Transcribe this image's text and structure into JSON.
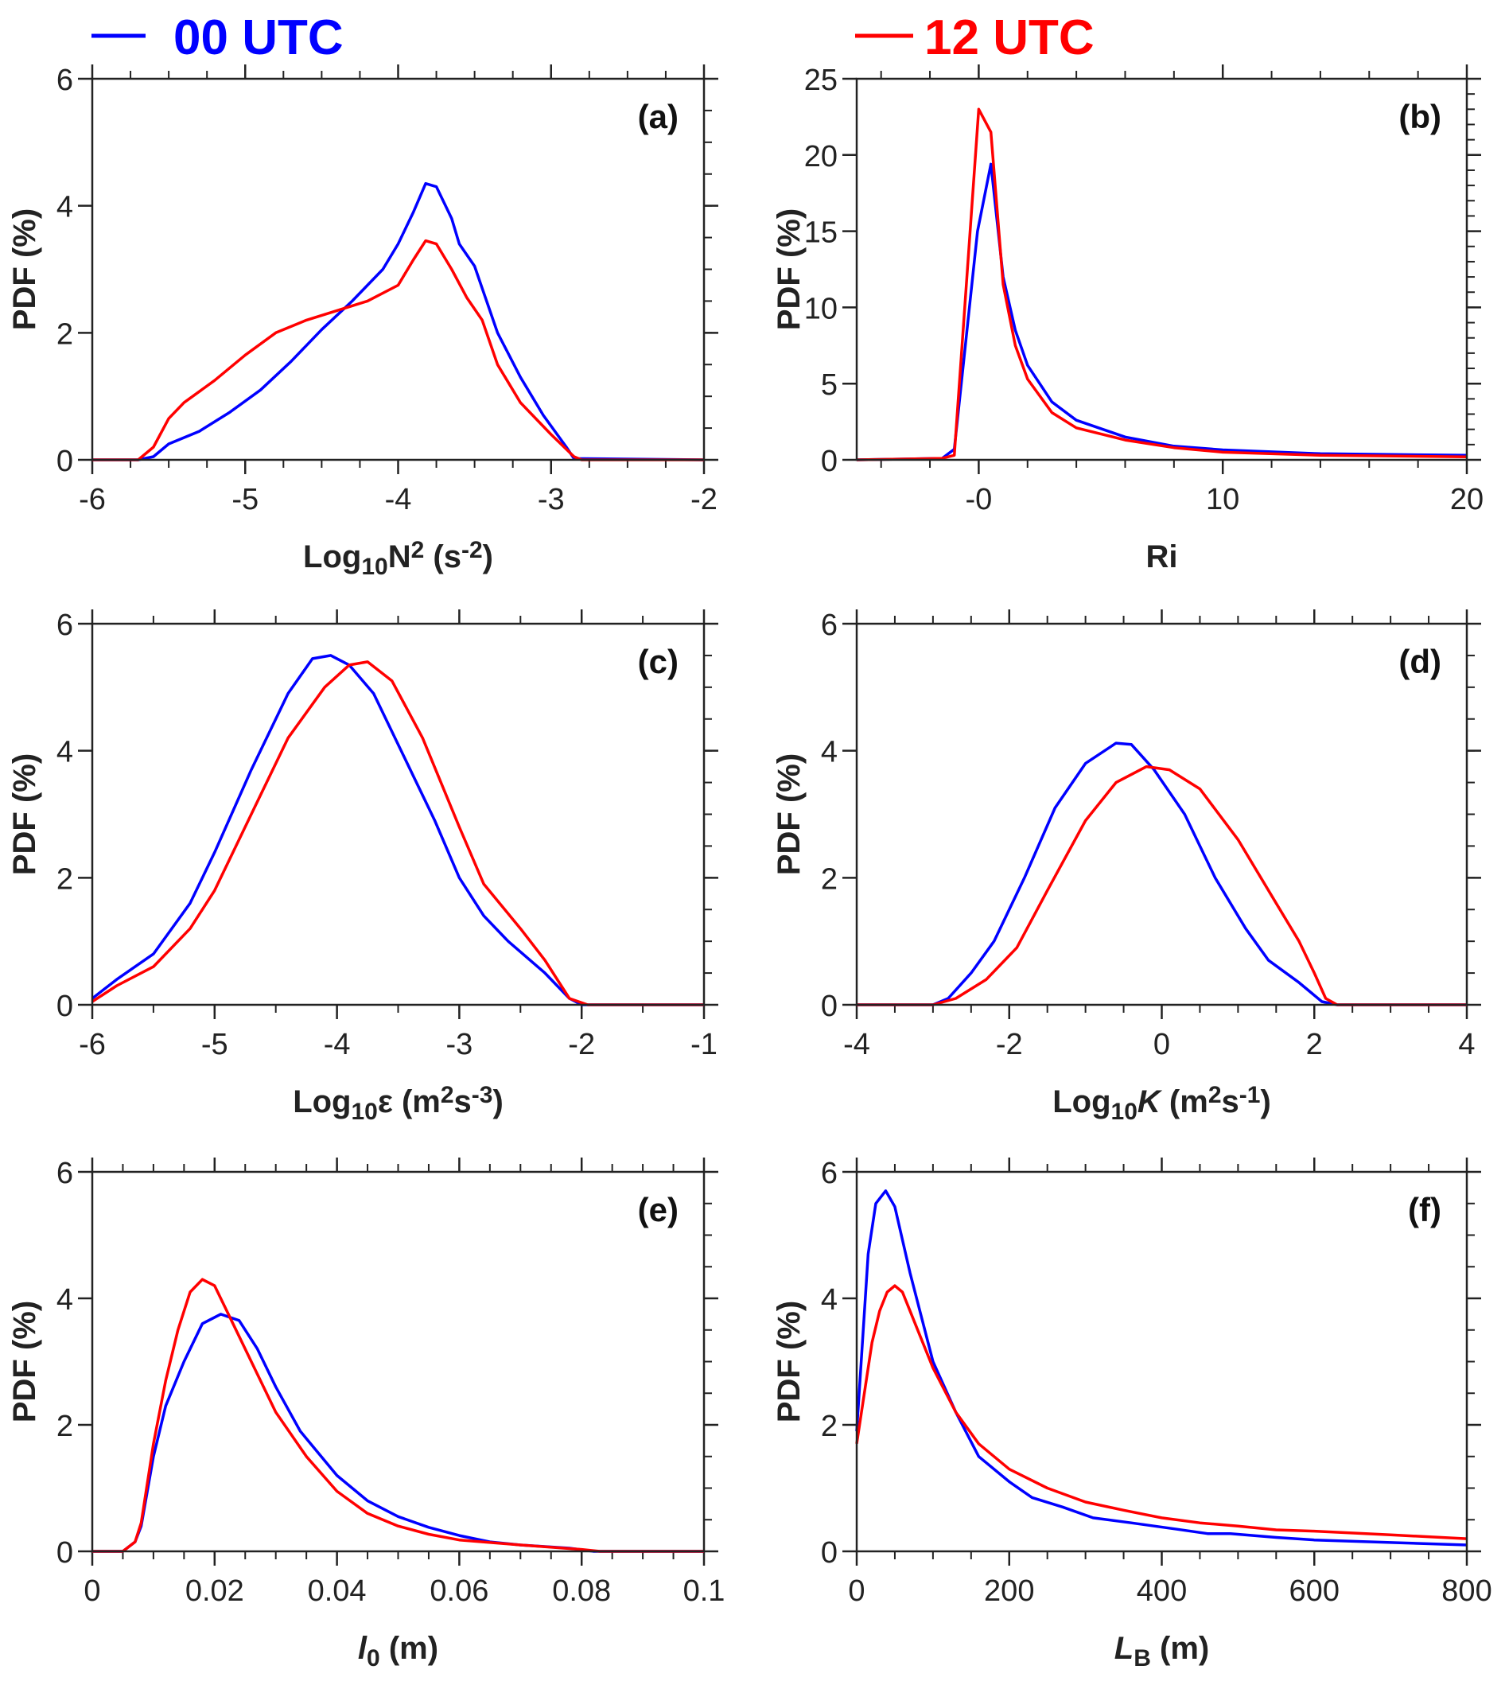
{
  "legend": [
    {
      "label": "00 UTC",
      "color": "#0000ff"
    },
    {
      "label": "12 UTC",
      "color": "#ff0000"
    }
  ],
  "chart_data": [
    {
      "type": "line",
      "panel": "(a)",
      "xlabel": [
        {
          "t": "Log"
        },
        {
          "t": "10",
          "s": "sub"
        },
        {
          "t": "N"
        },
        {
          "t": "2",
          "s": "sup"
        },
        {
          "t": " (s"
        },
        {
          "t": "-2",
          "s": "sup"
        },
        {
          "t": ")"
        }
      ],
      "ylabel": "PDF (%)",
      "xlim": [
        -6,
        -2
      ],
      "ylim": [
        0,
        6
      ],
      "xticks": [
        -6,
        -5,
        -4,
        -3,
        -2
      ],
      "xtick_labels": [
        "-6",
        "-5",
        "-4",
        "-3",
        "-2"
      ],
      "xminor": 0.25,
      "yticks": [
        0,
        2,
        4,
        6
      ],
      "ytick_labels": [
        "0",
        "2",
        "4",
        "6"
      ],
      "yminor": 0.5,
      "series": [
        {
          "name": "00 UTC",
          "color": "#0000ff",
          "x": [
            -6,
            -5.7,
            -5.6,
            -5.5,
            -5.3,
            -5.1,
            -4.9,
            -4.7,
            -4.5,
            -4.3,
            -4.1,
            -4.0,
            -3.9,
            -3.82,
            -3.75,
            -3.65,
            -3.6,
            -3.5,
            -3.45,
            -3.35,
            -3.2,
            -3.05,
            -2.9,
            -2.85,
            -2
          ],
          "y": [
            0,
            0,
            0.05,
            0.25,
            0.45,
            0.75,
            1.1,
            1.55,
            2.05,
            2.5,
            3.0,
            3.4,
            3.9,
            4.35,
            4.3,
            3.8,
            3.4,
            3.05,
            2.7,
            2.0,
            1.3,
            0.7,
            0.2,
            0.02,
            0
          ]
        },
        {
          "name": "12 UTC",
          "color": "#ff0000",
          "x": [
            -6,
            -5.7,
            -5.6,
            -5.5,
            -5.4,
            -5.2,
            -5,
            -4.8,
            -4.6,
            -4.4,
            -4.2,
            -4.0,
            -3.9,
            -3.82,
            -3.75,
            -3.65,
            -3.55,
            -3.45,
            -3.35,
            -3.2,
            -3.0,
            -2.85,
            -2.8,
            -2
          ],
          "y": [
            0,
            0,
            0.2,
            0.65,
            0.9,
            1.25,
            1.65,
            2.0,
            2.2,
            2.35,
            2.5,
            2.75,
            3.15,
            3.45,
            3.4,
            3.0,
            2.55,
            2.2,
            1.5,
            0.9,
            0.4,
            0.05,
            0,
            0
          ]
        }
      ]
    },
    {
      "type": "line",
      "panel": "(b)",
      "xlabel": [
        {
          "t": "Ri"
        }
      ],
      "ylabel": "PDF (%)",
      "xlim": [
        -5,
        20
      ],
      "ylim": [
        0,
        25
      ],
      "xticks": [
        0,
        10,
        20
      ],
      "xtick_labels": [
        "-0",
        "10",
        "20"
      ],
      "xminor": 2,
      "yticks": [
        0,
        5,
        10,
        15,
        20,
        25
      ],
      "ytick_labels": [
        "0",
        "5",
        "10",
        "15",
        "20",
        "25"
      ],
      "yminor": 1,
      "series": [
        {
          "name": "00 UTC",
          "color": "#0000ff",
          "x": [
            -5,
            -1.5,
            -1,
            -0.05,
            0.5,
            1,
            1.5,
            2,
            3,
            4,
            6,
            8,
            10,
            14,
            20
          ],
          "y": [
            0,
            0.1,
            0.7,
            15,
            19.4,
            12,
            8.5,
            6.2,
            3.8,
            2.6,
            1.5,
            0.9,
            0.65,
            0.4,
            0.3
          ]
        },
        {
          "name": "12 UTC",
          "color": "#ff0000",
          "x": [
            -5,
            -1.5,
            -1,
            0,
            0.5,
            1,
            1.5,
            2,
            3,
            4,
            5,
            6,
            8,
            10,
            14,
            20
          ],
          "y": [
            0,
            0.1,
            0.3,
            23,
            21.5,
            11.5,
            7.5,
            5.3,
            3.1,
            2.1,
            1.7,
            1.3,
            0.8,
            0.5,
            0.3,
            0.2
          ]
        }
      ]
    },
    {
      "type": "line",
      "panel": "(c)",
      "xlabel": [
        {
          "t": "Log"
        },
        {
          "t": "10",
          "s": "sub"
        },
        {
          "t": "ε (m"
        },
        {
          "t": "2",
          "s": "sup"
        },
        {
          "t": "s"
        },
        {
          "t": "-3",
          "s": "sup"
        },
        {
          "t": ")"
        }
      ],
      "ylabel": "PDF (%)",
      "xlim": [
        -6,
        -1
      ],
      "ylim": [
        0,
        6
      ],
      "xticks": [
        -6,
        -5,
        -4,
        -3,
        -2,
        -1
      ],
      "xtick_labels": [
        "-6",
        "-5",
        "-4",
        "-3",
        "-2",
        "-1"
      ],
      "xminor": 0.5,
      "yticks": [
        0,
        2,
        4,
        6
      ],
      "ytick_labels": [
        "0",
        "2",
        "4",
        "6"
      ],
      "yminor": 0.5,
      "series": [
        {
          "name": "00 UTC",
          "color": "#0000ff",
          "x": [
            -6,
            -5.8,
            -5.5,
            -5.2,
            -5,
            -4.7,
            -4.4,
            -4.2,
            -4.05,
            -3.9,
            -3.7,
            -3.5,
            -3.2,
            -3,
            -2.8,
            -2.6,
            -2.3,
            -2.1,
            -2,
            -1
          ],
          "y": [
            0.1,
            0.4,
            0.8,
            1.6,
            2.4,
            3.7,
            4.9,
            5.45,
            5.5,
            5.35,
            4.9,
            4.1,
            2.9,
            2.0,
            1.4,
            1.0,
            0.5,
            0.1,
            0,
            0
          ]
        },
        {
          "name": "12 UTC",
          "color": "#ff0000",
          "x": [
            -6,
            -5.8,
            -5.5,
            -5.2,
            -5,
            -4.7,
            -4.4,
            -4.1,
            -3.9,
            -3.75,
            -3.55,
            -3.3,
            -3,
            -2.8,
            -2.5,
            -2.3,
            -2.1,
            -1.95,
            -1
          ],
          "y": [
            0.05,
            0.3,
            0.6,
            1.2,
            1.8,
            3.0,
            4.2,
            5.0,
            5.35,
            5.4,
            5.1,
            4.2,
            2.8,
            1.9,
            1.2,
            0.7,
            0.1,
            0,
            0
          ]
        }
      ]
    },
    {
      "type": "line",
      "panel": "(d)",
      "xlabel": [
        {
          "t": "Log"
        },
        {
          "t": "10",
          "s": "sub"
        },
        {
          "t": "K",
          "s": "i"
        },
        {
          "t": " (m"
        },
        {
          "t": "2",
          "s": "sup"
        },
        {
          "t": "s"
        },
        {
          "t": "-1",
          "s": "sup"
        },
        {
          "t": ")"
        }
      ],
      "ylabel": "PDF (%)",
      "xlim": [
        -4,
        4
      ],
      "ylim": [
        0,
        6
      ],
      "xticks": [
        -4,
        -2,
        0,
        2,
        4
      ],
      "xtick_labels": [
        "-4",
        "-2",
        "0",
        "2",
        "4"
      ],
      "xminor": 0.5,
      "yticks": [
        0,
        2,
        4,
        6
      ],
      "ytick_labels": [
        "0",
        "2",
        "4",
        "6"
      ],
      "yminor": 0.5,
      "series": [
        {
          "name": "00 UTC",
          "color": "#0000ff",
          "x": [
            -4,
            -3,
            -2.8,
            -2.5,
            -2.2,
            -1.8,
            -1.4,
            -1,
            -0.6,
            -0.4,
            -0.1,
            0.3,
            0.7,
            1.1,
            1.4,
            1.8,
            2.1,
            2.3,
            4
          ],
          "y": [
            0,
            0,
            0.1,
            0.5,
            1.0,
            2.0,
            3.1,
            3.8,
            4.12,
            4.1,
            3.7,
            3.0,
            2.0,
            1.2,
            0.7,
            0.35,
            0.05,
            0,
            0
          ]
        },
        {
          "name": "12 UTC",
          "color": "#ff0000",
          "x": [
            -4,
            -3,
            -2.7,
            -2.3,
            -1.9,
            -1.5,
            -1.0,
            -0.6,
            -0.2,
            0.1,
            0.5,
            1.0,
            1.5,
            1.8,
            2.0,
            2.15,
            2.3,
            4
          ],
          "y": [
            0,
            0,
            0.1,
            0.4,
            0.9,
            1.8,
            2.9,
            3.5,
            3.75,
            3.7,
            3.4,
            2.6,
            1.6,
            1.0,
            0.5,
            0.1,
            0,
            0
          ]
        }
      ]
    },
    {
      "type": "line",
      "panel": "(e)",
      "xlabel": [
        {
          "t": "l",
          "s": "i"
        },
        {
          "t": "0",
          "s": "sub"
        },
        {
          "t": " (m)"
        }
      ],
      "ylabel": "PDF (%)",
      "xlim": [
        0,
        0.1
      ],
      "ylim": [
        0,
        6
      ],
      "xticks": [
        0,
        0.02,
        0.04,
        0.06,
        0.08,
        0.1
      ],
      "xtick_labels": [
        "0",
        "0.02",
        "0.04",
        "0.06",
        "0.08",
        "0.1"
      ],
      "xminor": 0.005,
      "yticks": [
        0,
        2,
        4,
        6
      ],
      "ytick_labels": [
        "0",
        "2",
        "4",
        "6"
      ],
      "yminor": 0.5,
      "series": [
        {
          "name": "00 UTC",
          "color": "#0000ff",
          "x": [
            0,
            0.005,
            0.007,
            0.008,
            0.01,
            0.012,
            0.015,
            0.018,
            0.021,
            0.024,
            0.027,
            0.03,
            0.034,
            0.04,
            0.045,
            0.05,
            0.055,
            0.06,
            0.065,
            0.07,
            0.078,
            0.082,
            0.1
          ],
          "y": [
            0,
            0,
            0.15,
            0.4,
            1.5,
            2.3,
            3.0,
            3.6,
            3.75,
            3.65,
            3.2,
            2.6,
            1.9,
            1.2,
            0.8,
            0.55,
            0.38,
            0.25,
            0.15,
            0.1,
            0.05,
            0,
            0
          ]
        },
        {
          "name": "12 UTC",
          "color": "#ff0000",
          "x": [
            0,
            0.005,
            0.007,
            0.008,
            0.01,
            0.012,
            0.014,
            0.016,
            0.018,
            0.02,
            0.023,
            0.027,
            0.03,
            0.035,
            0.04,
            0.045,
            0.05,
            0.055,
            0.06,
            0.07,
            0.08,
            0.083,
            0.1
          ],
          "y": [
            0,
            0,
            0.15,
            0.45,
            1.7,
            2.7,
            3.5,
            4.1,
            4.3,
            4.2,
            3.6,
            2.8,
            2.2,
            1.5,
            0.95,
            0.6,
            0.4,
            0.27,
            0.18,
            0.1,
            0.03,
            0,
            0
          ]
        }
      ]
    },
    {
      "type": "line",
      "panel": "(f)",
      "xlabel": [
        {
          "t": "L",
          "s": "i"
        },
        {
          "t": "B",
          "s": "sub"
        },
        {
          "t": " (m)"
        }
      ],
      "ylabel": "PDF (%)",
      "xlim": [
        0,
        800
      ],
      "ylim": [
        0,
        6
      ],
      "xticks": [
        0,
        200,
        400,
        600,
        800
      ],
      "xtick_labels": [
        "0",
        "200",
        "400",
        "600",
        "800"
      ],
      "xminor": 50,
      "yticks": [
        0,
        2,
        4,
        6
      ],
      "ytick_labels": [
        "0",
        "2",
        "4",
        "6"
      ],
      "yminor": 0.5,
      "series": [
        {
          "name": "00 UTC",
          "color": "#0000ff",
          "x": [
            0,
            15,
            25,
            38,
            50,
            70,
            100,
            130,
            160,
            200,
            230,
            270,
            310,
            360,
            420,
            460,
            490,
            550,
            600,
            700,
            800
          ],
          "y": [
            1.9,
            4.7,
            5.5,
            5.7,
            5.45,
            4.4,
            3.0,
            2.2,
            1.5,
            1.1,
            0.85,
            0.7,
            0.53,
            0.45,
            0.35,
            0.28,
            0.28,
            0.22,
            0.18,
            0.14,
            0.1
          ]
        },
        {
          "name": "12 UTC",
          "color": "#ff0000",
          "x": [
            0,
            20,
            30,
            40,
            50,
            60,
            80,
            100,
            130,
            160,
            200,
            250,
            300,
            350,
            400,
            450,
            500,
            550,
            600,
            700,
            800
          ],
          "y": [
            1.7,
            3.3,
            3.8,
            4.1,
            4.2,
            4.1,
            3.5,
            2.9,
            2.2,
            1.7,
            1.3,
            1.0,
            0.78,
            0.65,
            0.53,
            0.45,
            0.4,
            0.34,
            0.32,
            0.26,
            0.2
          ]
        }
      ]
    }
  ]
}
